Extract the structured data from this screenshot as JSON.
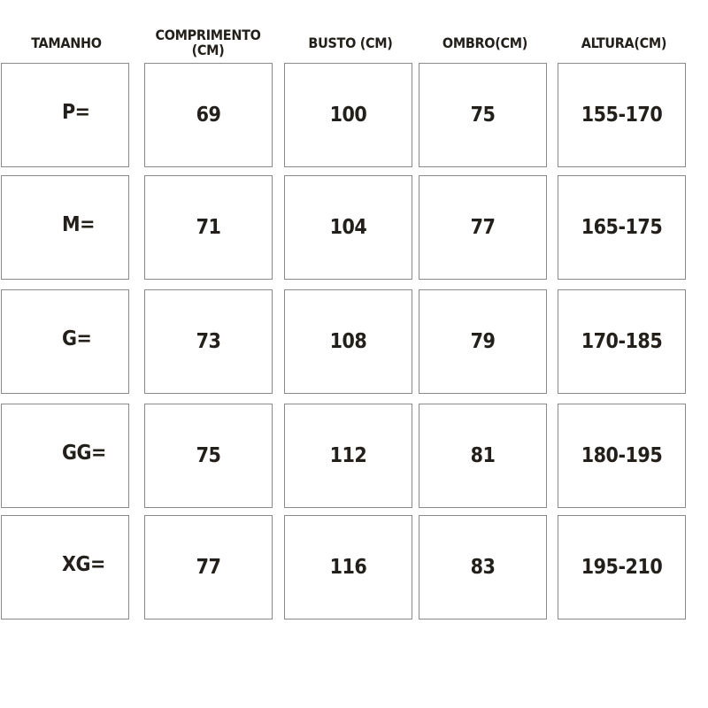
{
  "headers": [
    "TAMANHO",
    "COMPRIMENTO (CM)",
    "BUSTO (CM)",
    "OMBRO(CM)",
    "ALTURA(CM)"
  ],
  "rows": [
    [
      "P=",
      "69",
      "100",
      "75",
      "155-170"
    ],
    [
      "M=",
      "71",
      "104",
      "77",
      "165-175"
    ],
    [
      "G=",
      "73",
      "108",
      "79",
      "170-185"
    ],
    [
      "GG=",
      "75",
      "112",
      "81",
      "180-195"
    ],
    [
      "XG=",
      "77",
      "116",
      "83",
      "195-210"
    ]
  ]
}
